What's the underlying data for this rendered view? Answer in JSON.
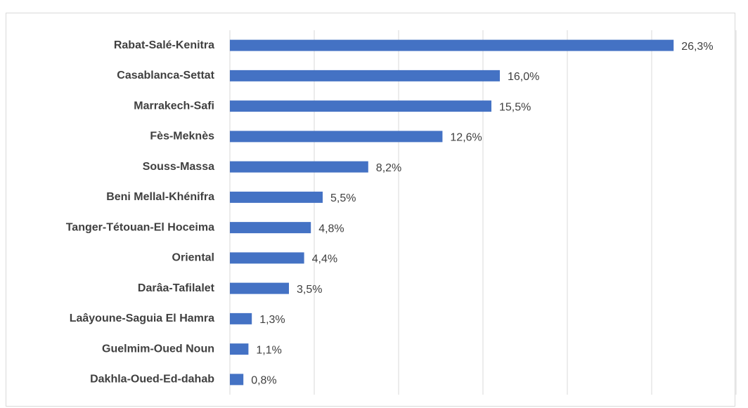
{
  "chart_data": {
    "type": "bar",
    "orientation": "horizontal",
    "categories": [
      "Rabat-Salé-Kenitra",
      "Casablanca-Settat",
      "Marrakech-Safi",
      "Fès-Meknès",
      "Souss-Massa",
      "Beni Mellal-Khénifra",
      "Tanger-Tétouan-El Hoceima",
      "Oriental",
      "Darâa-Tafilalet",
      "Laâyoune-Saguia El Hamra",
      "Guelmim-Oued Noun",
      "Dakhla-Oued-Ed-dahab"
    ],
    "values": [
      26.3,
      16.0,
      15.5,
      12.6,
      8.2,
      5.5,
      4.8,
      4.4,
      3.5,
      1.3,
      1.1,
      0.8
    ],
    "value_labels": [
      "26,3%",
      "16,0%",
      "15,5%",
      "12,6%",
      "8,2%",
      "5,5%",
      "4,8%",
      "4,4%",
      "3,5%",
      "1,3%",
      "1,1%",
      "0,8%"
    ],
    "color": "#4472c4",
    "xlim": [
      0,
      30
    ],
    "xticks": [
      0,
      5,
      10,
      15,
      20,
      25,
      30
    ],
    "grid": true
  }
}
